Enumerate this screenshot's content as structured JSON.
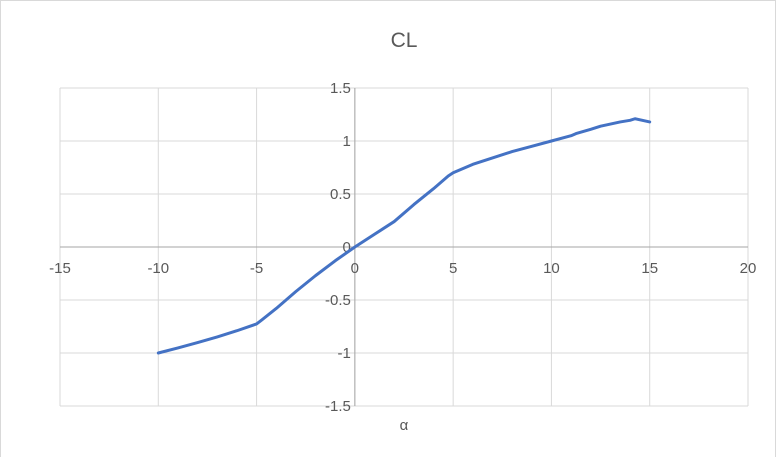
{
  "chart_data": {
    "type": "line",
    "title": "CL",
    "xlabel": "α",
    "ylabel": "",
    "xlim": [
      -15,
      20
    ],
    "ylim": [
      -1.5,
      1.5
    ],
    "x_ticks": [
      -15,
      -10,
      -5,
      0,
      5,
      10,
      15,
      20
    ],
    "y_ticks": [
      -1.5,
      -1,
      -0.5,
      0,
      0.5,
      1,
      1.5
    ],
    "x_tick_labels": [
      "-15",
      "-10",
      "-5",
      "0",
      "5",
      "10",
      "15",
      "20"
    ],
    "y_tick_labels": [
      "-1.5",
      "-1",
      "-0.5",
      "0",
      "0.5",
      "1",
      "1.5"
    ],
    "grid": true,
    "legend": "none",
    "series": [
      {
        "color": "#4472c4",
        "x": [
          -10,
          -9,
          -8,
          -7,
          -6,
          -5,
          -4.75,
          -4,
          -3,
          -2,
          -1,
          0,
          1,
          2,
          3,
          4,
          4.75,
          5,
          6,
          7,
          8,
          9,
          10,
          11,
          11.25,
          12,
          12.5,
          13,
          13.5,
          14,
          14.25,
          15
        ],
        "y": [
          -1.0,
          -0.952,
          -0.902,
          -0.848,
          -0.79,
          -0.726,
          -0.69,
          -0.58,
          -0.42,
          -0.27,
          -0.13,
          0.0,
          0.12,
          0.24,
          0.4,
          0.55,
          0.67,
          0.7,
          0.78,
          0.84,
          0.9,
          0.95,
          1.0,
          1.05,
          1.07,
          1.11,
          1.14,
          1.16,
          1.18,
          1.195,
          1.21,
          1.18
        ]
      }
    ]
  }
}
